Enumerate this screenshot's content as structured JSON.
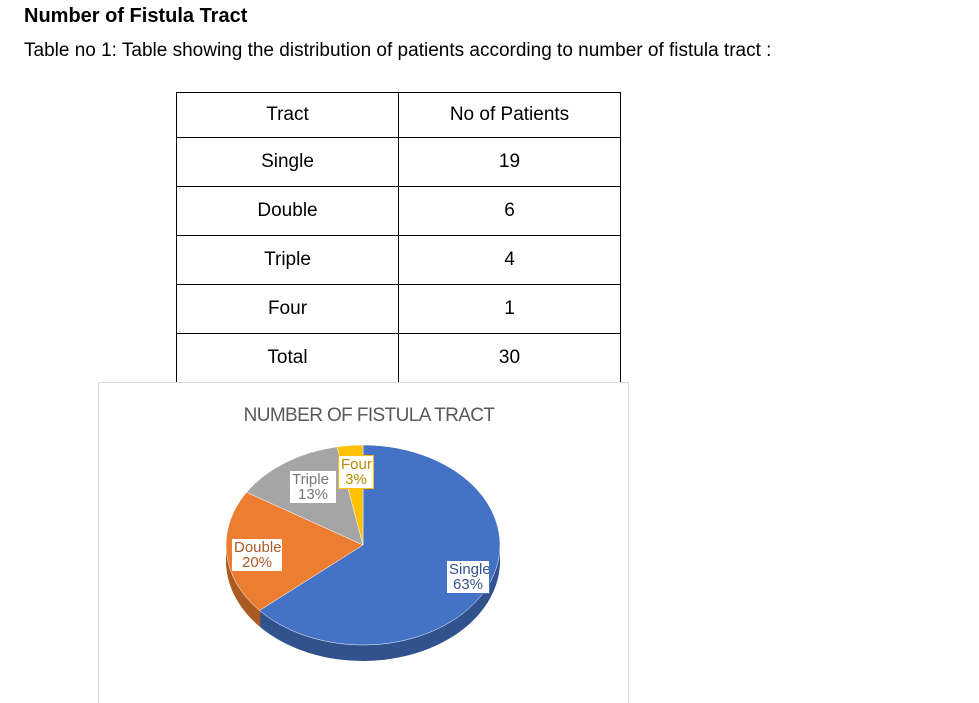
{
  "heading": "Number of Fistula Tract",
  "caption": "Table no 1: Table showing the distribution of patients according to number of fistula tract :",
  "table": {
    "header": [
      "Tract",
      "No of Patients"
    ],
    "rows": [
      [
        "Single",
        19
      ],
      [
        "Double",
        6
      ],
      [
        "Triple",
        4
      ],
      [
        "Four",
        1
      ],
      [
        "Total",
        30
      ]
    ]
  },
  "chart_data": {
    "type": "pie",
    "title": "NUMBER OF FISTULA TRACT",
    "categories": [
      "Single",
      "Double",
      "Triple",
      "Four"
    ],
    "values": [
      63,
      20,
      13,
      3
    ],
    "value_labels": [
      "63%",
      "20%",
      "13%",
      "3%"
    ],
    "colors": [
      "#4472c4",
      "#ed7d31",
      "#a5a5a5",
      "#ffc000"
    ]
  }
}
